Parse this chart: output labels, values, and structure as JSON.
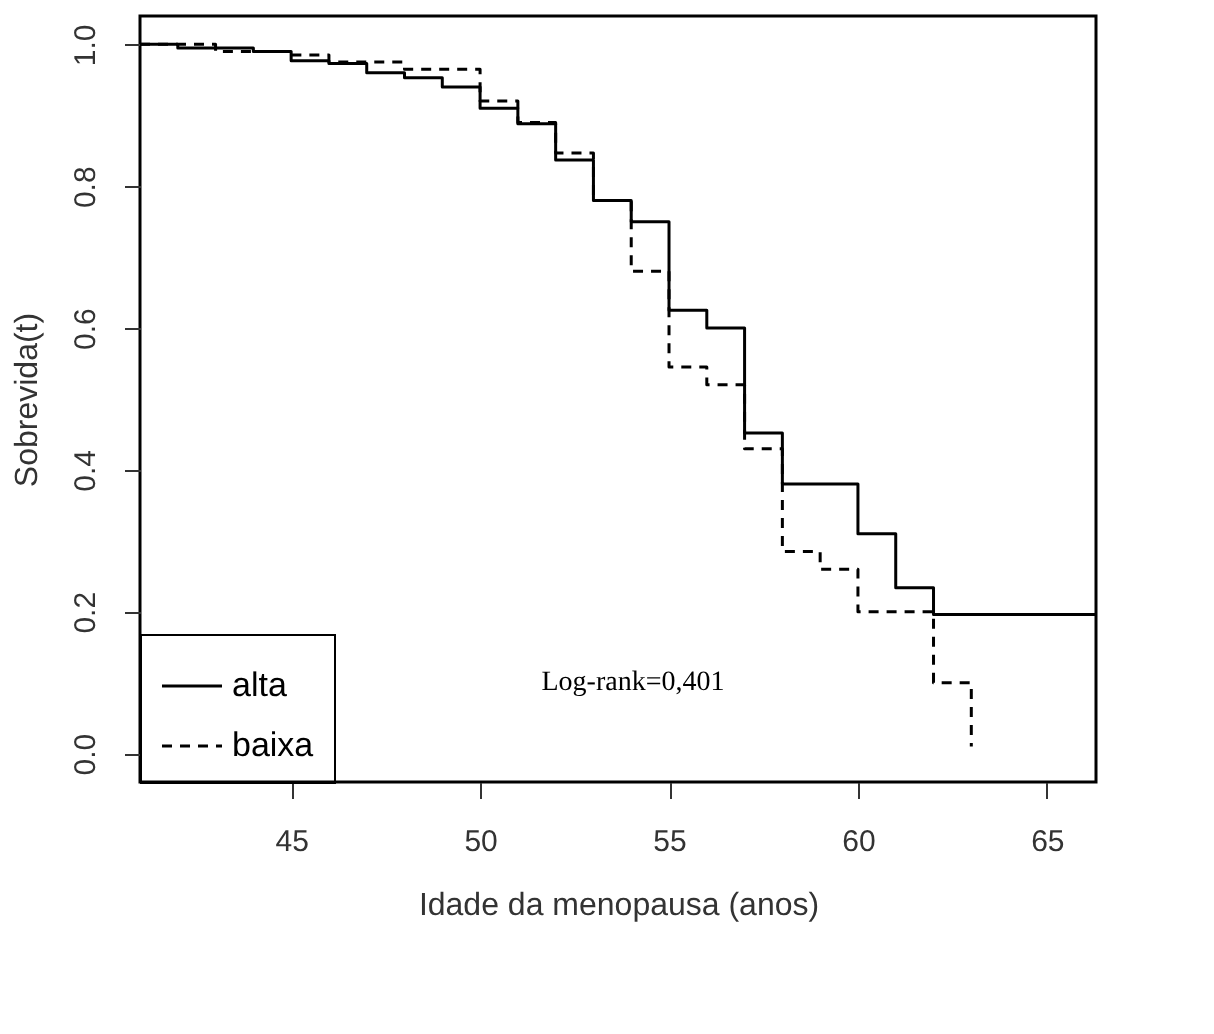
{
  "chart_data": {
    "type": "step",
    "xlabel": "Idade da menopausa (anos)",
    "ylabel": "Sobrevida(t)",
    "xlim": [
      41,
      66.3
    ],
    "ylim": [
      -0.04,
      1.04
    ],
    "xticks": [
      45,
      50,
      55,
      60,
      65
    ],
    "yticks": [
      {
        "value": 0,
        "label": "0.0"
      },
      0.2,
      0.4,
      0.6,
      0.8,
      {
        "value": 1,
        "label": "1.0"
      }
    ],
    "grid": false,
    "legend": "bottom left",
    "marker": "none",
    "series": [
      {
        "name": "alta",
        "color": "#000000",
        "line_style": "solid",
        "x": [
          41,
          42,
          44,
          45,
          46,
          47,
          48,
          49,
          50,
          51,
          52,
          53,
          54,
          55,
          56,
          57,
          58,
          60,
          61,
          62,
          66.3
        ],
        "values": [
          1.0,
          0.995,
          0.99,
          0.977,
          0.973,
          0.96,
          0.953,
          0.94,
          0.91,
          0.888,
          0.837,
          0.78,
          0.75,
          0.625,
          0.6,
          0.452,
          0.38,
          0.31,
          0.234,
          0.196,
          0.196
        ]
      },
      {
        "name": "baixa",
        "color": "#000000",
        "line_style": "dashed",
        "x": [
          41,
          43,
          45,
          46,
          48,
          50,
          51,
          52,
          53,
          54,
          55,
          56,
          57,
          58,
          59,
          60,
          62,
          63
        ],
        "values": [
          1.0,
          0.99,
          0.985,
          0.975,
          0.965,
          0.92,
          0.89,
          0.847,
          0.78,
          0.68,
          0.545,
          0.52,
          0.43,
          0.285,
          0.26,
          0.2,
          0.1,
          0.01
        ]
      }
    ],
    "annotations": [
      "Log-rank=0,401"
    ]
  }
}
